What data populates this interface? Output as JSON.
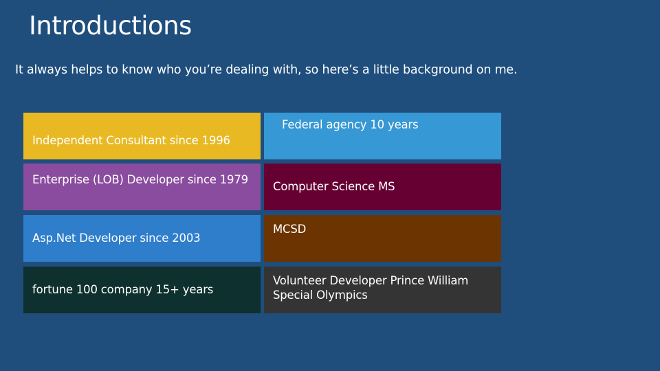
{
  "slide": {
    "title": "Introductions",
    "subtitle": "It always helps to know who you’re dealing with, so here’s a little background on me."
  },
  "tiles": [
    {
      "text": "Independent Consultant since 1996",
      "color": "#e8b923"
    },
    {
      "text": "Federal agency 10 years",
      "color": "#3698d4"
    },
    {
      "text": "Enterprise (LOB) Developer since 1979",
      "color": "#8a4c9e"
    },
    {
      "text": "Computer Science MS",
      "color": "#660033"
    },
    {
      "text": "Asp.Net Developer since 2003",
      "color": "#2f7ecb"
    },
    {
      "text": "MCSD",
      "color": "#6b3400"
    },
    {
      "text": "fortune 100 company 15+ years",
      "color": "#0e302e"
    },
    {
      "text": "Volunteer Developer Prince William Special Olympics",
      "color": "#343434"
    }
  ]
}
